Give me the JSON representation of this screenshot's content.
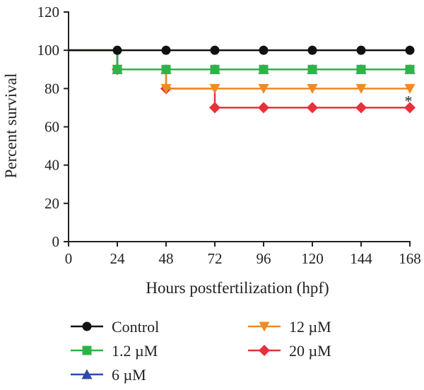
{
  "chart_data": {
    "type": "line",
    "step": true,
    "title": "",
    "xlabel": "Hours postfertilization (hpf)",
    "ylabel": "Percent survival",
    "xlim": [
      0,
      168
    ],
    "ylim": [
      0,
      120
    ],
    "xticks": [
      0,
      24,
      48,
      72,
      96,
      120,
      144,
      168
    ],
    "yticks": [
      0,
      20,
      40,
      60,
      80,
      100,
      120
    ],
    "grid": false,
    "legend_position": "bottom",
    "x": [
      0,
      24,
      48,
      72,
      96,
      120,
      144,
      168
    ],
    "series": [
      {
        "name": "Control",
        "marker": "circle",
        "color": "#111111",
        "values": [
          100,
          100,
          100,
          100,
          100,
          100,
          100,
          100
        ]
      },
      {
        "name": "1.2 µM",
        "marker": "square",
        "color": "#2db34a",
        "values": [
          100,
          90,
          90,
          90,
          90,
          90,
          90,
          90
        ]
      },
      {
        "name": "6 µM",
        "marker": "triangle-up",
        "color": "#2d4aa8",
        "values": [
          100,
          90,
          90,
          90,
          90,
          90,
          90,
          90
        ]
      },
      {
        "name": "12 µM",
        "marker": "triangle-down",
        "color": "#f08a24",
        "values": [
          100,
          90,
          80,
          80,
          80,
          80,
          80,
          80
        ]
      },
      {
        "name": "20 µM",
        "marker": "diamond",
        "color": "#e8303a",
        "values": [
          100,
          90,
          80,
          70,
          70,
          70,
          70,
          70
        ]
      }
    ],
    "annotations": [
      {
        "text": "*",
        "x": 168,
        "y": 80
      }
    ]
  }
}
